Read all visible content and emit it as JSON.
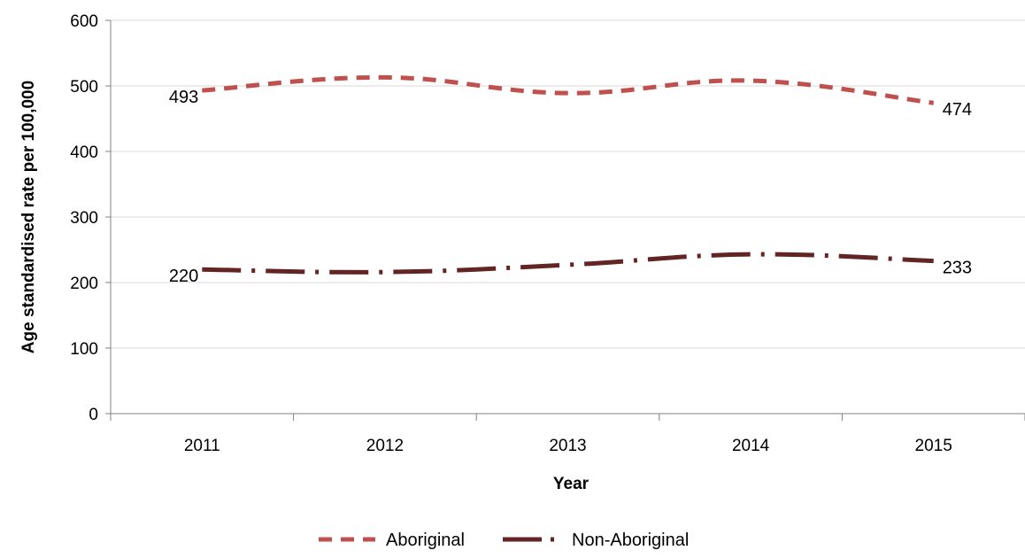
{
  "chart_data": {
    "type": "line",
    "categories": [
      "2011",
      "2012",
      "2013",
      "2014",
      "2015"
    ],
    "series": [
      {
        "name": "Aboriginal",
        "values": [
          493,
          513,
          489,
          508,
          474
        ],
        "color": "#c0504d",
        "labels": [
          "493",
          null,
          null,
          null,
          "474"
        ]
      },
      {
        "name": "Non-Aboriginal",
        "values": [
          220,
          216,
          227,
          243,
          233
        ],
        "color": "#632523",
        "labels": [
          "220",
          null,
          null,
          null,
          "233"
        ]
      }
    ],
    "xlabel": "Year",
    "ylabel": "Age standardised rate per 100,000",
    "ylim": [
      0,
      600
    ],
    "yticks": [
      0,
      100,
      200,
      300,
      400,
      500,
      600
    ],
    "grid": true,
    "legend_position": "bottom"
  }
}
